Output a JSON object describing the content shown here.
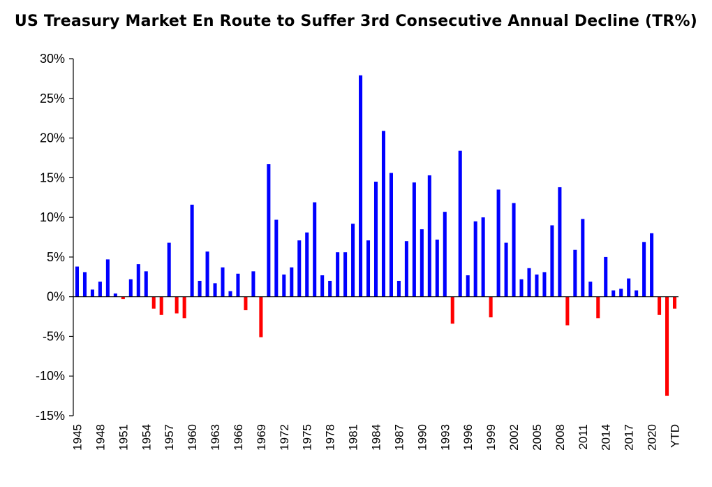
{
  "chart_data": {
    "type": "bar",
    "title": "US Treasury Market En Route to Suffer 3rd Consecutive Annual Decline (TR%)",
    "ylim": [
      -15,
      30
    ],
    "yticks": [
      {
        "value": 30,
        "label": "30%"
      },
      {
        "value": 25,
        "label": "25%"
      },
      {
        "value": 20,
        "label": "20%"
      },
      {
        "value": 15,
        "label": "15%"
      },
      {
        "value": 10,
        "label": "10%"
      },
      {
        "value": 5,
        "label": "5%"
      },
      {
        "value": 0,
        "label": "0%"
      },
      {
        "value": -5,
        "label": "-5%"
      },
      {
        "value": -10,
        "label": "-10%"
      },
      {
        "value": -15,
        "label": "-15%"
      }
    ],
    "grid": false,
    "legend": "none",
    "colors": {
      "positive": "#0000ff",
      "negative": "#ff0000",
      "axis": "#000000"
    },
    "categories": [
      "1945",
      "1946",
      "1947",
      "1948",
      "1949",
      "1950",
      "1951",
      "1952",
      "1953",
      "1954",
      "1955",
      "1956",
      "1957",
      "1958",
      "1959",
      "1960",
      "1961",
      "1962",
      "1963",
      "1964",
      "1965",
      "1966",
      "1967",
      "1968",
      "1969",
      "1970",
      "1971",
      "1972",
      "1973",
      "1974",
      "1975",
      "1976",
      "1977",
      "1978",
      "1979",
      "1980",
      "1981",
      "1982",
      "1983",
      "1984",
      "1985",
      "1986",
      "1987",
      "1988",
      "1989",
      "1990",
      "1991",
      "1992",
      "1993",
      "1994",
      "1995",
      "1996",
      "1997",
      "1998",
      "1999",
      "2000",
      "2001",
      "2002",
      "2003",
      "2004",
      "2005",
      "2006",
      "2007",
      "2008",
      "2009",
      "2010",
      "2011",
      "2012",
      "2013",
      "2014",
      "2015",
      "2016",
      "2017",
      "2018",
      "2019",
      "2020",
      "2021",
      "2022",
      "YTD"
    ],
    "tick_labels": [
      "1945",
      "1948",
      "1951",
      "1954",
      "1957",
      "1960",
      "1963",
      "1966",
      "1969",
      "1972",
      "1975",
      "1978",
      "1981",
      "1984",
      "1987",
      "1990",
      "1993",
      "1996",
      "1999",
      "2002",
      "2005",
      "2008",
      "2011",
      "2014",
      "2017",
      "2020",
      "YTD"
    ],
    "values": [
      3.8,
      3.1,
      0.9,
      1.9,
      4.7,
      0.4,
      -0.3,
      2.2,
      4.1,
      3.2,
      -1.5,
      -2.3,
      6.8,
      -2.1,
      -2.7,
      11.6,
      2.0,
      5.7,
      1.7,
      3.7,
      0.7,
      2.9,
      -1.7,
      3.2,
      -5.1,
      16.7,
      9.7,
      2.8,
      3.7,
      7.1,
      8.1,
      11.9,
      2.7,
      2.0,
      5.6,
      5.6,
      9.2,
      27.9,
      7.1,
      14.5,
      20.9,
      15.6,
      2.0,
      7.0,
      14.4,
      8.5,
      15.3,
      7.2,
      10.7,
      -3.4,
      18.4,
      2.7,
      9.5,
      10.0,
      -2.6,
      13.5,
      6.8,
      11.8,
      2.2,
      3.6,
      2.8,
      3.1,
      9.0,
      13.8,
      -3.6,
      5.9,
      9.8,
      1.9,
      -2.7,
      5.0,
      0.8,
      1.0,
      2.3,
      0.8,
      6.9,
      8.0,
      -2.3,
      -12.5,
      -1.5
    ]
  }
}
